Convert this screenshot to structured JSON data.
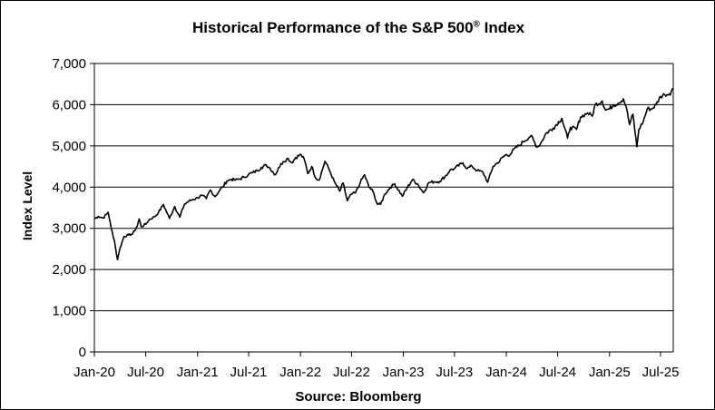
{
  "chart_data": {
    "type": "line",
    "title_main": "Historical Performance of the S&P 500",
    "title_mark": "®",
    "title_tail": " Index",
    "ylabel": "Index Level",
    "xlabel": "Source: Bloomberg",
    "ylim": [
      0,
      7000
    ],
    "yticks": [
      0,
      1000,
      2000,
      3000,
      4000,
      5000,
      6000,
      7000
    ],
    "ytick_labels": [
      "0",
      "1,000",
      "2,000",
      "3,000",
      "4,000",
      "5,000",
      "6,000",
      "7,000"
    ],
    "xlim": [
      "2020-01-01",
      "2025-08-15"
    ],
    "xticks": [
      "2020-01-01",
      "2020-07-01",
      "2021-01-01",
      "2021-07-01",
      "2022-01-01",
      "2022-07-01",
      "2023-01-01",
      "2023-07-01",
      "2024-01-01",
      "2024-07-01",
      "2025-01-01",
      "2025-07-01"
    ],
    "xtick_labels": [
      "Jan-20",
      "Jul-20",
      "Jan-21",
      "Jul-21",
      "Jan-22",
      "Jul-22",
      "Jan-23",
      "Jul-23",
      "Jan-24",
      "Jul-24",
      "Jan-25",
      "Jul-25"
    ],
    "grid": "horizontal",
    "line_color": "#000000",
    "series": [
      {
        "x": [
          "2020-01-01",
          "2020-01-15",
          "2020-02-01",
          "2020-02-19",
          "2020-03-01",
          "2020-03-12",
          "2020-03-23",
          "2020-04-01",
          "2020-04-15",
          "2020-05-01",
          "2020-05-15",
          "2020-06-01",
          "2020-06-08",
          "2020-06-15",
          "2020-07-01",
          "2020-07-15",
          "2020-08-01",
          "2020-08-15",
          "2020-09-02",
          "2020-09-23",
          "2020-10-12",
          "2020-10-30",
          "2020-11-15",
          "2020-12-01",
          "2020-12-15",
          "2021-01-01",
          "2021-01-15",
          "2021-02-01",
          "2021-02-15",
          "2021-03-04",
          "2021-03-20",
          "2021-04-01",
          "2021-04-15",
          "2021-05-01",
          "2021-05-15",
          "2021-06-01",
          "2021-06-15",
          "2021-07-01",
          "2021-07-15",
          "2021-08-01",
          "2021-08-15",
          "2021-09-02",
          "2021-09-15",
          "2021-10-04",
          "2021-10-15",
          "2021-11-01",
          "2021-11-18",
          "2021-12-01",
          "2021-12-15",
          "2022-01-03",
          "2022-01-15",
          "2022-01-27",
          "2022-02-10",
          "2022-02-24",
          "2022-03-08",
          "2022-03-29",
          "2022-04-15",
          "2022-05-01",
          "2022-05-20",
          "2022-06-01",
          "2022-06-16",
          "2022-07-01",
          "2022-07-15",
          "2022-08-01",
          "2022-08-16",
          "2022-09-01",
          "2022-09-15",
          "2022-09-30",
          "2022-10-12",
          "2022-10-27",
          "2022-11-15",
          "2022-12-01",
          "2022-12-28",
          "2023-01-15",
          "2023-02-02",
          "2023-02-20",
          "2023-03-13",
          "2023-04-01",
          "2023-04-20",
          "2023-05-10",
          "2023-06-01",
          "2023-06-15",
          "2023-07-01",
          "2023-07-31",
          "2023-08-15",
          "2023-09-01",
          "2023-09-20",
          "2023-10-10",
          "2023-10-27",
          "2023-11-15",
          "2023-12-01",
          "2023-12-28",
          "2024-01-15",
          "2024-02-01",
          "2024-02-15",
          "2024-03-01",
          "2024-03-28",
          "2024-04-19",
          "2024-05-01",
          "2024-05-20",
          "2024-06-15",
          "2024-07-16",
          "2024-08-05",
          "2024-08-15",
          "2024-09-06",
          "2024-09-20",
          "2024-10-15",
          "2024-11-01",
          "2024-11-11",
          "2024-12-06",
          "2024-12-18",
          "2025-01-01",
          "2025-01-15",
          "2025-02-01",
          "2025-02-19",
          "2025-03-01",
          "2025-03-13",
          "2025-03-25",
          "2025-04-08",
          "2025-04-15",
          "2025-05-01",
          "2025-05-15",
          "2025-06-01",
          "2025-06-15",
          "2025-07-01",
          "2025-07-15",
          "2025-08-01",
          "2025-08-15"
        ],
        "y": [
          3230,
          3290,
          3250,
          3390,
          3000,
          2700,
          2240,
          2520,
          2800,
          2840,
          2860,
          3050,
          3230,
          3040,
          3100,
          3220,
          3280,
          3380,
          3580,
          3240,
          3530,
          3270,
          3580,
          3660,
          3700,
          3740,
          3800,
          3720,
          3930,
          3770,
          3920,
          4010,
          4150,
          4190,
          4170,
          4200,
          4240,
          4310,
          4350,
          4400,
          4480,
          4530,
          4460,
          4300,
          4470,
          4620,
          4700,
          4590,
          4720,
          4790,
          4660,
          4330,
          4500,
          4220,
          4170,
          4630,
          4390,
          4130,
          3900,
          4100,
          3670,
          3830,
          3860,
          4110,
          4300,
          4000,
          3900,
          3590,
          3580,
          3830,
          3990,
          4080,
          3780,
          3990,
          4180,
          4080,
          3860,
          4110,
          4130,
          4140,
          4280,
          4410,
          4450,
          4590,
          4450,
          4510,
          4400,
          4360,
          4120,
          4500,
          4590,
          4780,
          4790,
          4950,
          5000,
          5100,
          5250,
          4970,
          5050,
          5300,
          5430,
          5670,
          5190,
          5450,
          5400,
          5700,
          5800,
          5720,
          6000,
          6090,
          5870,
          5900,
          5990,
          6040,
          6144,
          5950,
          5520,
          5770,
          4980,
          5400,
          5600,
          5900,
          5900,
          6000,
          6200,
          6250,
          6260,
          6390
        ]
      }
    ]
  }
}
